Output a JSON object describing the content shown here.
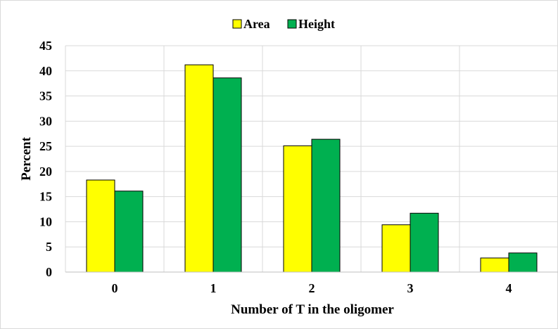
{
  "chart_data": {
    "type": "bar",
    "categories": [
      "0",
      "1",
      "2",
      "3",
      "4"
    ],
    "series": [
      {
        "name": "Area",
        "color": "#ffff00",
        "values": [
          18.3,
          41.2,
          25.1,
          9.4,
          2.8
        ]
      },
      {
        "name": "Height",
        "color": "#00b050",
        "values": [
          16.1,
          38.6,
          26.4,
          11.7,
          3.8
        ]
      }
    ],
    "xlabel": "Number of T in the oligomer",
    "ylabel": "Percent",
    "ylim": [
      0,
      45
    ],
    "yticks": [
      0,
      5,
      10,
      15,
      20,
      25,
      30,
      35,
      40,
      45
    ],
    "grid": true,
    "legend_position": "top-center"
  }
}
